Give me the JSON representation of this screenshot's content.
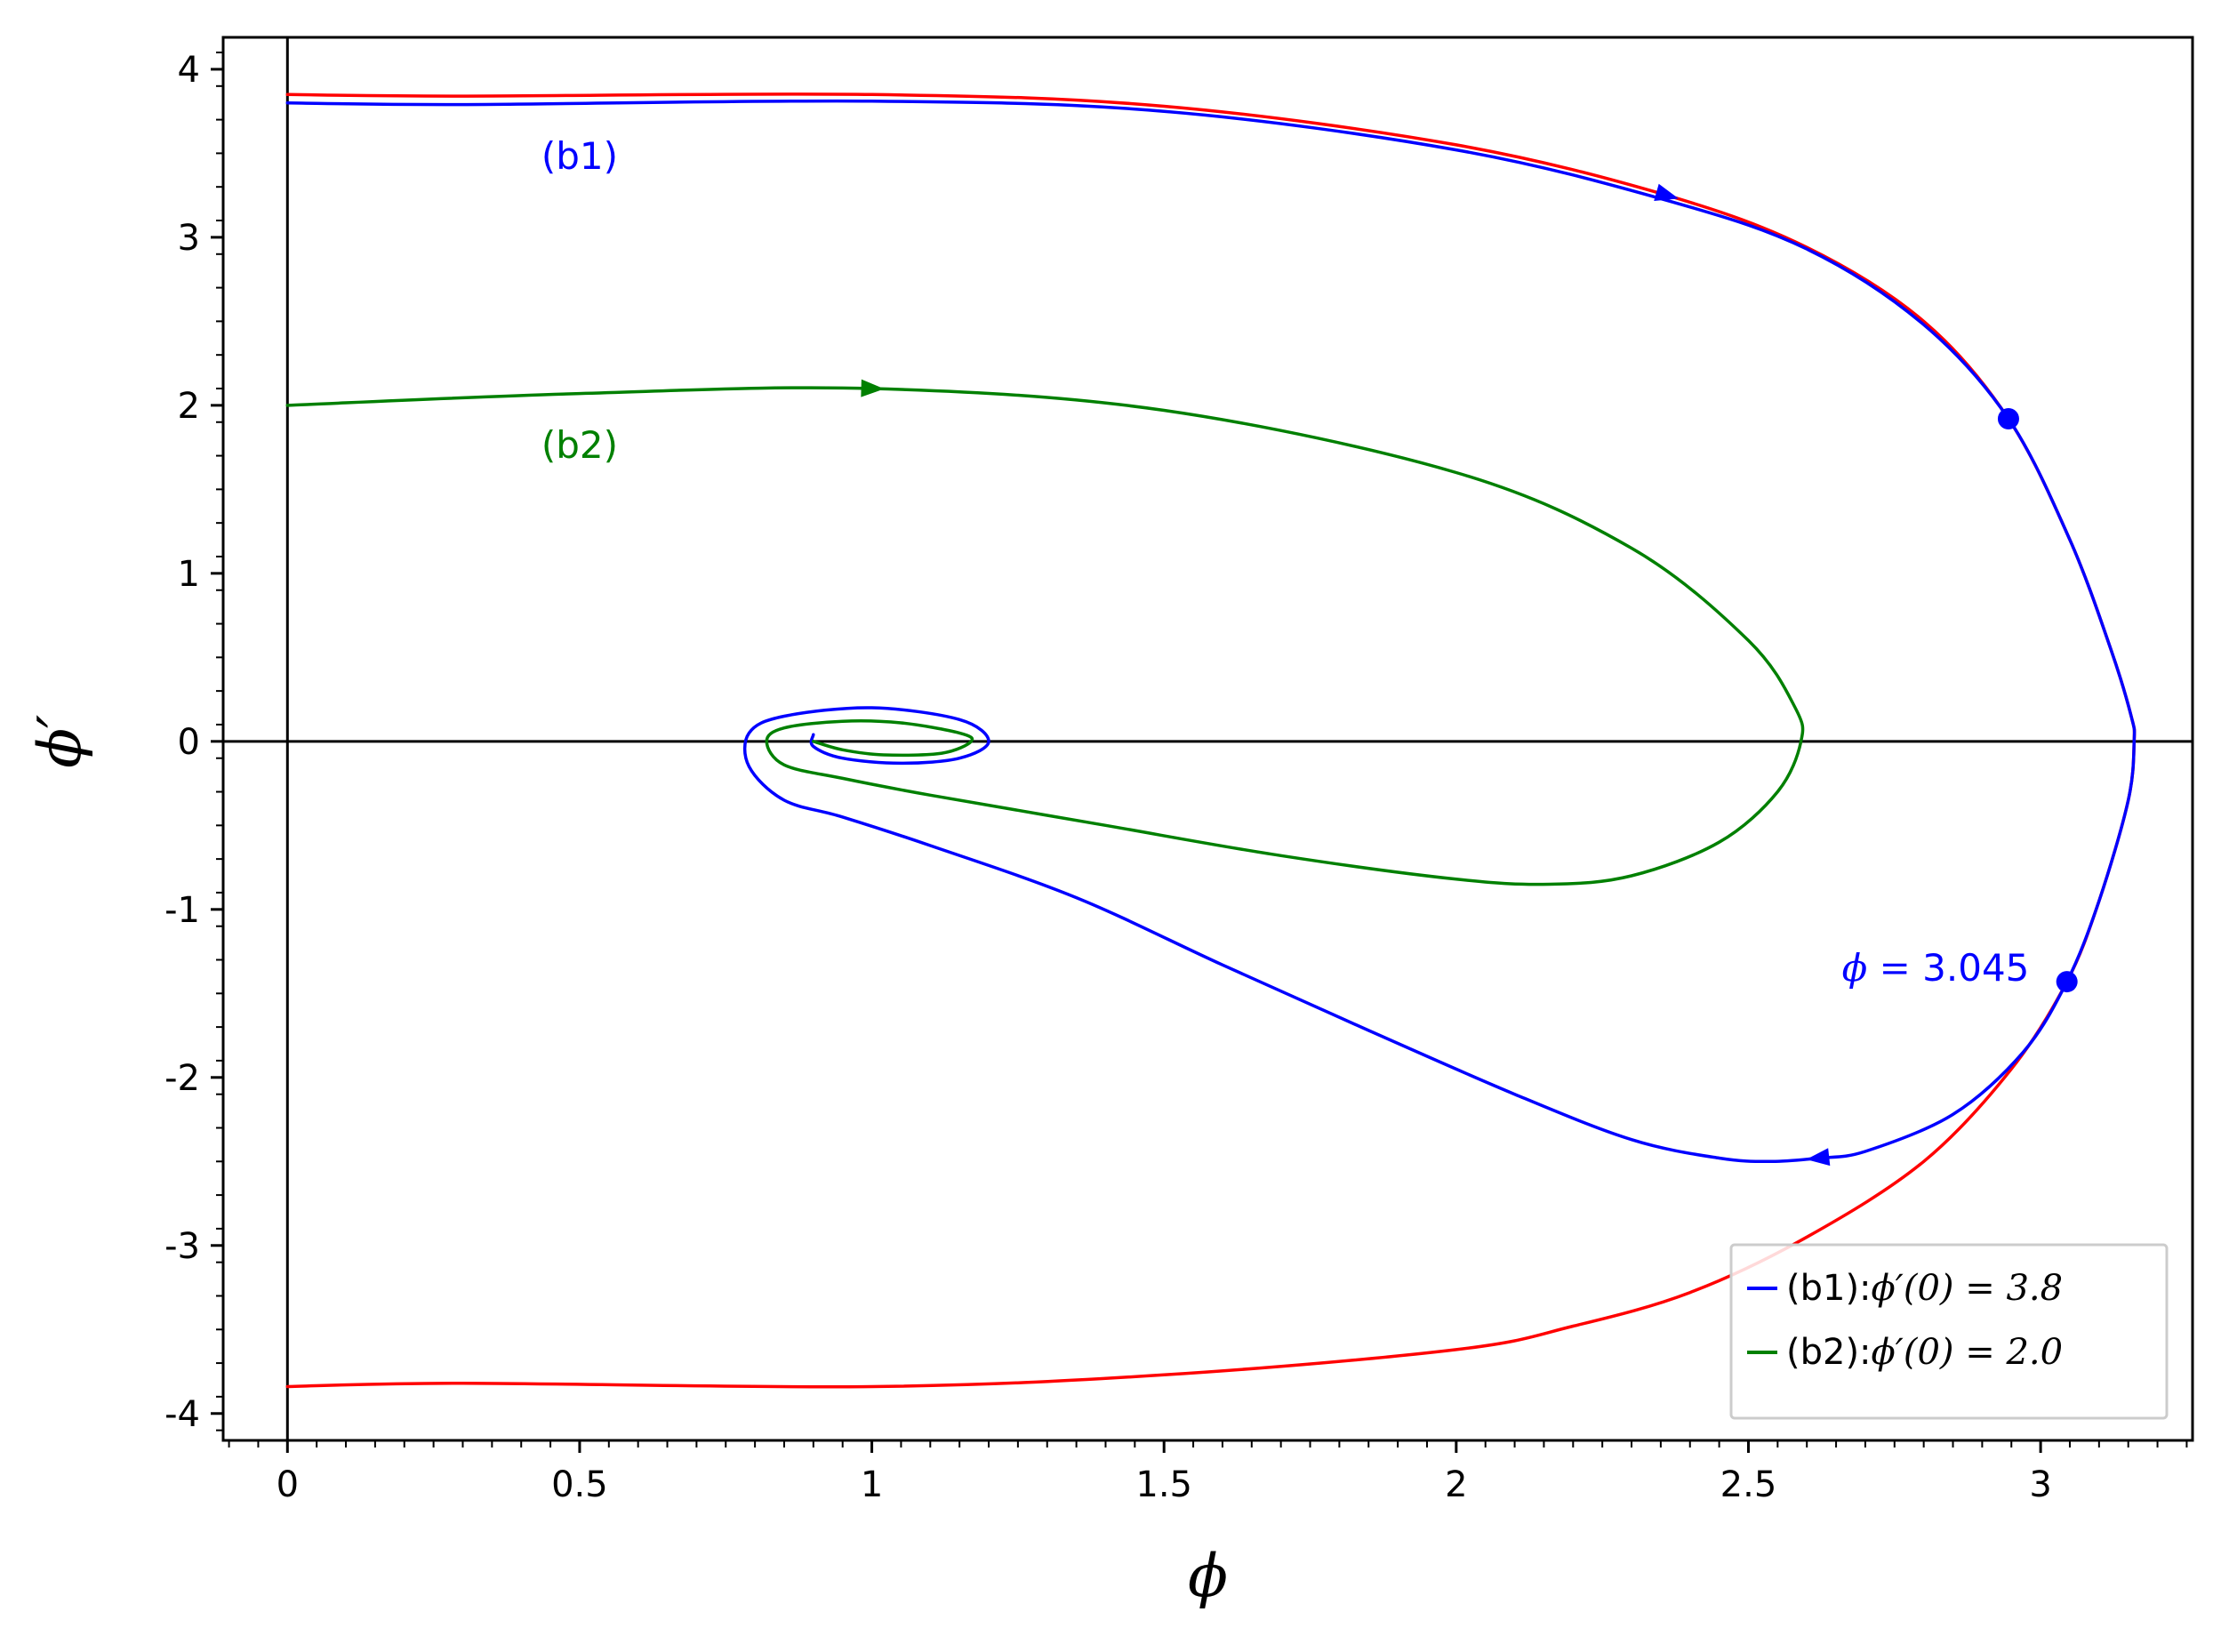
{
  "chart_data": {
    "type": "line",
    "title": "",
    "xlabel": "ϕ",
    "ylabel": "ϕ′",
    "xlim": [
      -0.11,
      3.26
    ],
    "ylim": [
      -4.16,
      4.19
    ],
    "grid": false,
    "x_ticks": [
      {
        "value": 0,
        "label": "0"
      },
      {
        "value": 0.5,
        "label": "0.5"
      },
      {
        "value": 1,
        "label": "1"
      },
      {
        "value": 1.5,
        "label": "1.5"
      },
      {
        "value": 2,
        "label": "2"
      },
      {
        "value": 2.5,
        "label": "2.5"
      },
      {
        "value": 3,
        "label": "3"
      }
    ],
    "y_ticks": [
      {
        "value": 4,
        "label": "4"
      },
      {
        "value": 3,
        "label": "3"
      },
      {
        "value": 2,
        "label": "2"
      },
      {
        "value": 1,
        "label": "1"
      },
      {
        "value": 0,
        "label": "0"
      },
      {
        "value": -1,
        "label": "-1"
      },
      {
        "value": -2,
        "label": "-2"
      },
      {
        "value": -3,
        "label": "-3"
      },
      {
        "value": -4,
        "label": "-4"
      }
    ],
    "reference_lines": [
      {
        "orientation": "vertical",
        "value": 0
      },
      {
        "orientation": "horizontal",
        "value": 0
      }
    ],
    "series": [
      {
        "color": "#ff0000",
        "x": [
          0,
          0.3,
          1.0,
          1.5,
          2.0,
          2.36,
          2.6,
          2.8,
          2.945,
          3.05,
          3.12,
          3.155,
          3.16,
          3.15,
          3.1,
          3.045,
          2.95,
          2.8,
          2.6,
          2.4,
          2.2,
          2.0,
          1.5,
          1.0,
          0.3,
          0
        ],
        "y": [
          3.85,
          3.84,
          3.85,
          3.78,
          3.55,
          3.25,
          2.94,
          2.5,
          1.92,
          1.2,
          0.55,
          0.15,
          0,
          -0.35,
          -0.95,
          -1.43,
          -1.95,
          -2.5,
          -2.95,
          -3.28,
          -3.48,
          -3.62,
          -3.77,
          -3.84,
          -3.82,
          -3.84
        ]
      },
      {
        "name": "(b1)",
        "color": "#0000ff",
        "x": [
          0,
          0.3,
          1.0,
          1.5,
          2.0,
          2.36,
          2.6,
          2.8,
          2.945,
          3.05,
          3.12,
          3.155,
          3.16,
          3.15,
          3.1,
          3.045,
          2.97,
          2.85,
          2.7,
          2.62,
          2.54,
          2.45,
          2.3,
          2.1,
          1.85,
          1.6,
          1.35,
          1.1,
          0.95,
          0.85,
          0.79,
          0.79,
          0.85,
          1.0,
          1.15,
          1.2,
          1.15,
          1.05,
          0.95,
          0.9,
          0.9
        ],
        "y": [
          3.8,
          3.79,
          3.81,
          3.75,
          3.52,
          3.22,
          2.93,
          2.48,
          1.92,
          1.2,
          0.55,
          0.15,
          0,
          -0.35,
          -0.95,
          -1.43,
          -1.85,
          -2.22,
          -2.44,
          -2.48,
          -2.5,
          -2.48,
          -2.37,
          -2.1,
          -1.72,
          -1.33,
          -0.93,
          -0.62,
          -0.45,
          -0.35,
          -0.15,
          0.05,
          0.15,
          0.2,
          0.13,
          0,
          -0.1,
          -0.13,
          -0.1,
          -0.03,
          0.04
        ]
      },
      {
        "name": "(b2)",
        "color": "#008000",
        "x": [
          0,
          0.5,
          1.0,
          1.5,
          2.0,
          2.3,
          2.5,
          2.58,
          2.59,
          2.55,
          2.45,
          2.3,
          2.16,
          2.0,
          1.7,
          1.4,
          1.1,
          0.95,
          0.85,
          0.82,
          0.85,
          0.95,
          1.05,
          1.15,
          1.17,
          1.12,
          1.02,
          0.95,
          0.9
        ],
        "y": [
          2.0,
          2.07,
          2.1,
          1.97,
          1.6,
          1.15,
          0.6,
          0.2,
          0,
          -0.3,
          -0.6,
          -0.8,
          -0.85,
          -0.82,
          -0.68,
          -0.5,
          -0.32,
          -0.22,
          -0.14,
          0,
          0.08,
          0.12,
          0.11,
          0.05,
          0,
          -0.07,
          -0.08,
          -0.05,
          0
        ]
      }
    ],
    "arrows": [
      {
        "series": 1,
        "x": 2.36,
        "y": 3.25,
        "direction": "forward"
      },
      {
        "series": 2,
        "x": 1.0,
        "y": 2.1,
        "direction": "forward"
      },
      {
        "series": 1,
        "x": 2.62,
        "y": -2.48,
        "direction": "forward"
      }
    ],
    "markers": [
      {
        "x": 2.945,
        "y": 1.92,
        "color": "#0000ff"
      },
      {
        "x": 3.045,
        "y": -1.43,
        "color": "#0000ff"
      }
    ],
    "annotations": [
      {
        "x": 0.5,
        "y": 3.48,
        "text": "(b1)",
        "color": "#0000ff"
      },
      {
        "x": 0.5,
        "y": 1.76,
        "text": "(b2)",
        "color": "#008000"
      },
      {
        "x": 2.66,
        "y": -1.35,
        "math": "ϕ = ",
        "text": "3.045",
        "color": "#0000ff"
      }
    ],
    "legend": {
      "placement": "lower right",
      "entries": [
        {
          "label": "(b1):",
          "math": "ϕ′(0) = 3.8",
          "color": "#0000ff"
        },
        {
          "label": "(b2):",
          "math": "ϕ′(0) = 2.0",
          "color": "#008000"
        }
      ]
    }
  }
}
